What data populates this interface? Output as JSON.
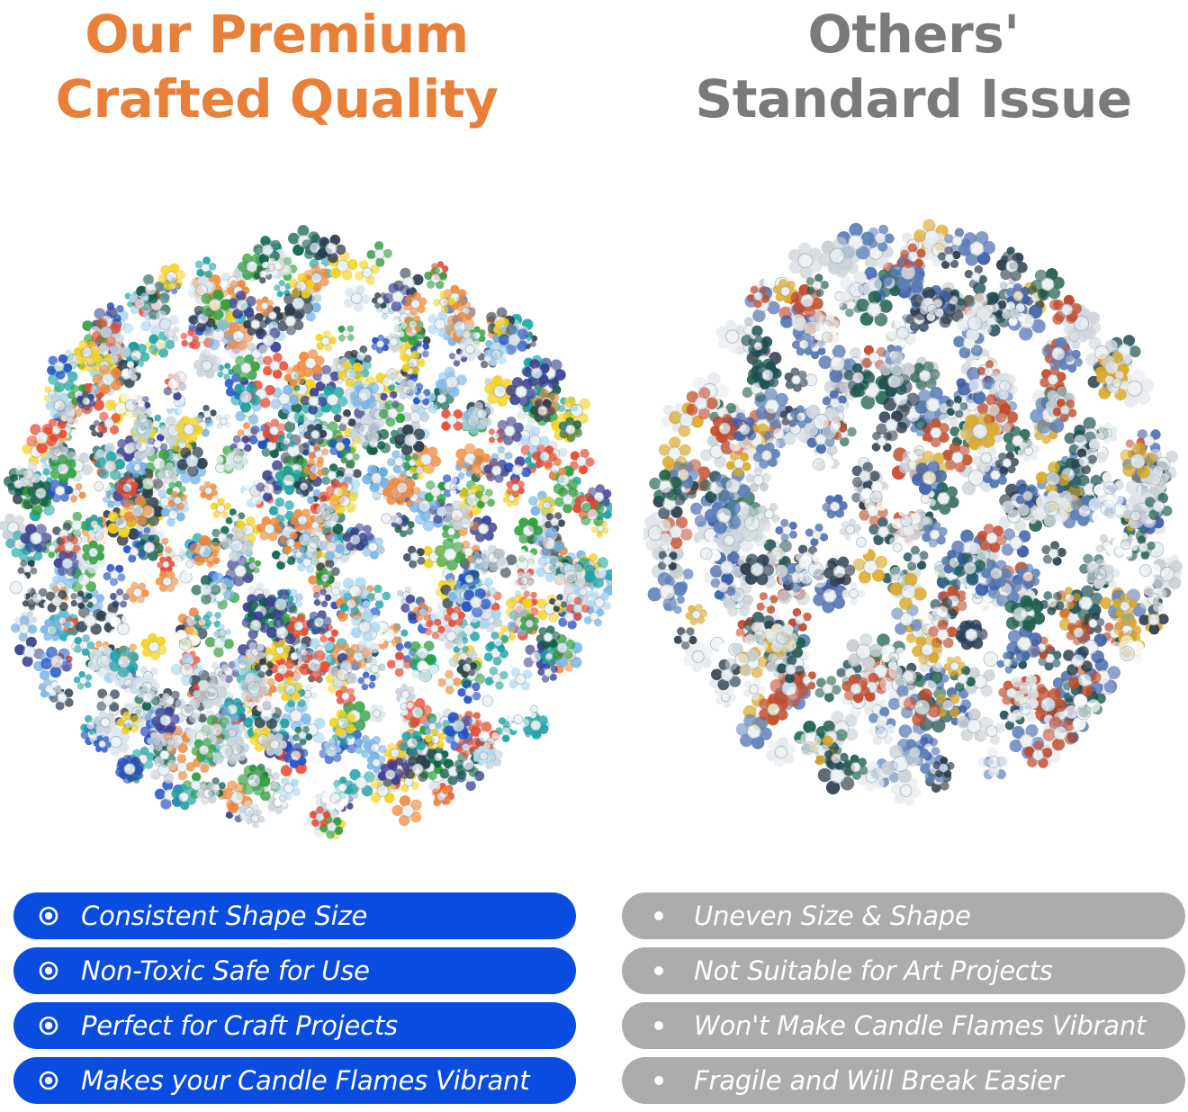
{
  "colors": {
    "left_title": "#E8803A",
    "right_title": "#7A7A7A",
    "left_pill": "#0A4BE0",
    "right_pill": "#ACACAC"
  },
  "left": {
    "title_line1": "Our Premium",
    "title_line2": "Crafted Quality",
    "bullet_icon": "radio-bullet-icon",
    "features": [
      "Consistent Shape Size",
      "Non-Toxic Safe for Use",
      "Perfect for Craft Projects",
      "Makes your Candle Flames Vibrant"
    ]
  },
  "right": {
    "title_line1": "Others'",
    "title_line2": "Standard Issue",
    "bullet_icon": "dot-bullet-icon",
    "features": [
      "Uneven Size & Shape",
      "Not Suitable for Art Projects",
      "Won't Make Candle Flames Vibrant",
      "Fragile and Will Break Easier"
    ]
  }
}
